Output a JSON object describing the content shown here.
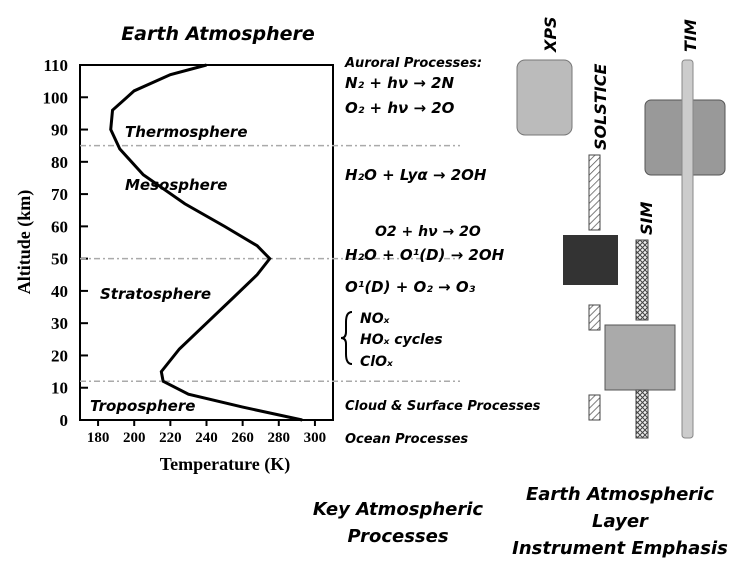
{
  "chart_data": {
    "type": "line",
    "title": "Earth Atmosphere",
    "x_label": "Temperature (K)",
    "y_label": "Altitude (km)",
    "xlim": [
      170,
      310
    ],
    "xticks": [
      180,
      200,
      220,
      240,
      260,
      280,
      300
    ],
    "ylim": [
      0,
      110
    ],
    "yticks": [
      0,
      10,
      20,
      30,
      40,
      50,
      60,
      70,
      80,
      90,
      100,
      110
    ],
    "series": [
      {
        "color": "#000000",
        "x": [
          293,
          260,
          230,
          216,
          215,
          225,
          240,
          255,
          268,
          275,
          268,
          250,
          228,
          205,
          192,
          187,
          188,
          200,
          220,
          240
        ],
        "values": [
          0,
          4,
          8,
          12,
          15,
          22,
          30,
          38,
          45,
          50,
          54,
          60,
          67,
          76,
          84,
          90,
          96,
          102,
          107,
          110
        ]
      }
    ],
    "layer_boundaries": [
      12,
      50,
      85
    ],
    "layers": [
      "Thermosphere",
      "Mesosphere",
      "Stratosphere",
      "Troposphere"
    ],
    "processes": [
      "Auroral Processes:",
      "N₂ + hν → 2N",
      "O₂ + hν → 2O",
      "H₂O + Lyα → 2OH",
      "O2 + hν → 2O",
      "H₂O + O¹(D) → 2OH",
      "O¹(D) + O₂ → O₃",
      "NOₓ",
      "HOₓ cycles",
      "ClOₓ",
      "Cloud & Surface Processes",
      "Ocean Processes"
    ],
    "processes_caption": "Key Atmospheric Processes",
    "instruments": [
      "XPS",
      "SOLSTICE",
      "SIM",
      "TIM"
    ],
    "instruments_caption": "Earth Atmospheric Layer Instrument Emphasis"
  }
}
